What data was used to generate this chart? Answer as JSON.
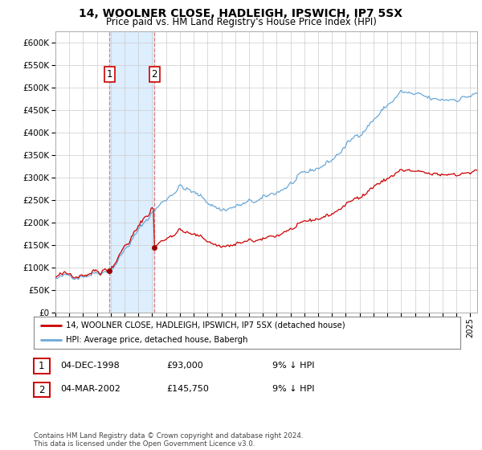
{
  "title": "14, WOOLNER CLOSE, HADLEIGH, IPSWICH, IP7 5SX",
  "subtitle": "Price paid vs. HM Land Registry's House Price Index (HPI)",
  "sale1_price": 93000,
  "sale2_price": 145750,
  "hpi_line_color": "#6aa8d8",
  "price_line_color": "#cc0000",
  "sale_marker_color": "#990000",
  "highlight_color": "#ddeeff",
  "vline_color": "#e08080",
  "legend1": "14, WOOLNER CLOSE, HADLEIGH, IPSWICH, IP7 5SX (detached house)",
  "legend2": "HPI: Average price, detached house, Babergh",
  "table_row1": [
    "1",
    "04-DEC-1998",
    "£93,000",
    "9% ↓ HPI"
  ],
  "table_row2": [
    "2",
    "04-MAR-2002",
    "£145,750",
    "9% ↓ HPI"
  ],
  "footnote": "Contains HM Land Registry data © Crown copyright and database right 2024.\nThis data is licensed under the Open Government Licence v3.0.",
  "ylim": [
    0,
    625000
  ],
  "yticks": [
    0,
    50000,
    100000,
    150000,
    200000,
    250000,
    300000,
    350000,
    400000,
    450000,
    500000,
    550000,
    600000
  ],
  "start_year": 1995,
  "end_year": 2025,
  "hpi_ratio": 1.09
}
